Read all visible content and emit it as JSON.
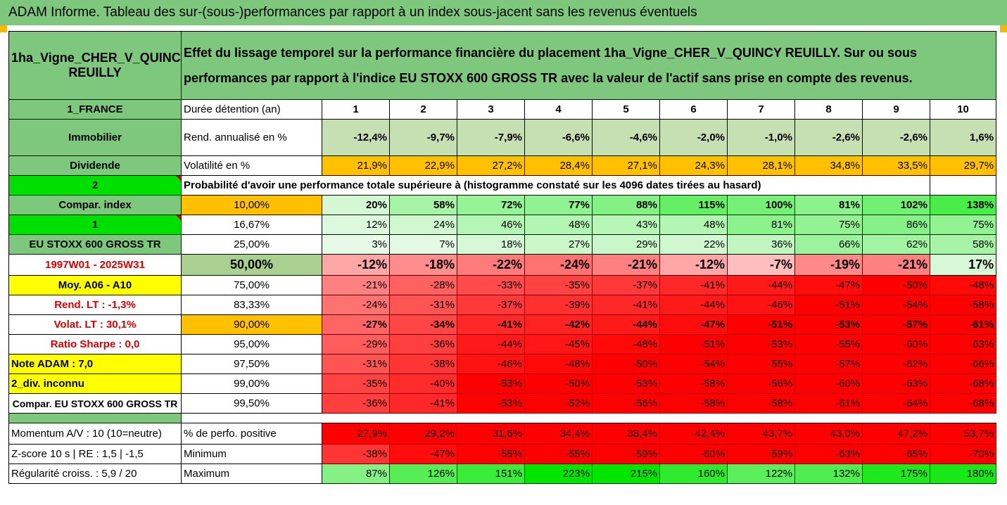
{
  "title": "ADAM Informe. Tableau des sur-(sous-)performances par rapport à un index sous-jacent sans les revenus éventuels",
  "asset_name": "1ha_Vigne_CHER_V_QUINCY REUILLY",
  "description": "Effet du lissage temporel sur la performance financière du placement 1ha_Vigne_CHER_V_QUINCY REUILLY. Sur ou sous performances par rapport à l'indice EU STOXX 600 GROSS TR avec la valeur de l'actif sans prise en compte des revenus.",
  "left_labels": {
    "country": "1_FRANCE",
    "category": "Immobilier",
    "dividende": "Dividende",
    "num2": "2",
    "compar_index": "Compar. index",
    "num1": "1",
    "index_name": "EU STOXX 600 GROSS TR",
    "period": "1997W01 - 2025W31",
    "moy": "Moy. A06 - A10",
    "rend_lt": "Rend. LT :   -1,3%",
    "volat_lt": "Volat. LT :   30,1%",
    "ratio_sharpe": "Ratio Sharpe :    0,0",
    "note_adam": "Note ADAM : 7,0",
    "div": "2_div. inconnu",
    "compar_full": "Compar. EU STOXX 600 GROSS TR",
    "momentum": "Momentum A/V : 10 (10=neutre)",
    "zscore": "Z-score 10 s  |  RE : 1,5  | -1,5",
    "regularite": "Régularité croiss. : 5,9 / 20"
  },
  "header": {
    "duration_label": "Durée détention (an)",
    "years": [
      "1",
      "2",
      "3",
      "4",
      "5",
      "6",
      "7",
      "8",
      "9",
      "10"
    ]
  },
  "rend": {
    "label": "Rend. annualisé en %",
    "values": [
      "-12,4%",
      "-9,7%",
      "-7,9%",
      "-6,6%",
      "-4,6%",
      "-2,0%",
      "-1,0%",
      "-2,6%",
      "-2,6%",
      "1,6%"
    ]
  },
  "volat": {
    "label": "Volatilité en %",
    "values": [
      "21,9%",
      "22,9%",
      "27,2%",
      "28,4%",
      "27,1%",
      "24,3%",
      "28,1%",
      "34,8%",
      "33,5%",
      "29,7%"
    ]
  },
  "prob_text": "Probabilité d'avoir une performance totale supérieure à (histogramme constaté sur les 4096 dates tirées au hasard)",
  "quantiles": [
    {
      "q": "10,00%",
      "values": [
        "20%",
        "58%",
        "72%",
        "77%",
        "88%",
        "115%",
        "100%",
        "81%",
        "102%",
        "138%"
      ]
    },
    {
      "q": "16,67%",
      "values": [
        "12%",
        "24%",
        "46%",
        "48%",
        "43%",
        "48%",
        "81%",
        "75%",
        "86%",
        "75%"
      ]
    },
    {
      "q": "25,00%",
      "values": [
        "3%",
        "7%",
        "18%",
        "27%",
        "29%",
        "22%",
        "36%",
        "66%",
        "62%",
        "58%"
      ]
    },
    {
      "q": "50,00%",
      "values": [
        "-12%",
        "-18%",
        "-22%",
        "-24%",
        "-21%",
        "-12%",
        "-7%",
        "-19%",
        "-21%",
        "17%"
      ]
    },
    {
      "q": "75,00%",
      "values": [
        "-21%",
        "-28%",
        "-33%",
        "-35%",
        "-37%",
        "-41%",
        "-44%",
        "-47%",
        "-50%",
        "-48%"
      ]
    },
    {
      "q": "83,33%",
      "values": [
        "-24%",
        "-31%",
        "-37%",
        "-39%",
        "-41%",
        "-44%",
        "-46%",
        "-51%",
        "-54%",
        "-58%"
      ]
    },
    {
      "q": "90,00%",
      "values": [
        "-27%",
        "-34%",
        "-41%",
        "-42%",
        "-44%",
        "-47%",
        "-51%",
        "-53%",
        "-57%",
        "-61%"
      ]
    },
    {
      "q": "95,00%",
      "values": [
        "-29%",
        "-36%",
        "-44%",
        "-45%",
        "-48%",
        "-51%",
        "-53%",
        "-55%",
        "-60%",
        "-63%"
      ]
    },
    {
      "q": "97,50%",
      "values": [
        "-31%",
        "-38%",
        "-46%",
        "-48%",
        "-50%",
        "-54%",
        "-55%",
        "-57%",
        "-62%",
        "-66%"
      ]
    },
    {
      "q": "99,00%",
      "values": [
        "-35%",
        "-40%",
        "-53%",
        "-50%",
        "-53%",
        "-58%",
        "-56%",
        "-60%",
        "-63%",
        "-68%"
      ]
    },
    {
      "q": "99,50%",
      "values": [
        "-36%",
        "-41%",
        "-53%",
        "-52%",
        "-56%",
        "-58%",
        "-58%",
        "-61%",
        "-64%",
        "-68%"
      ]
    }
  ],
  "positive": {
    "label": "% de perfo. positive",
    "values": [
      "27,9%",
      "29,2%",
      "31,6%",
      "34,4%",
      "38,4%",
      "42,4%",
      "43,7%",
      "43,0%",
      "47,2%",
      "53,7%"
    ]
  },
  "minimum": {
    "label": "Minimum",
    "values": [
      "-38%",
      "-47%",
      "-55%",
      "-55%",
      "-59%",
      "-60%",
      "-59%",
      "-63%",
      "-65%",
      "-70%"
    ]
  },
  "maximum": {
    "label": "Maximum",
    "values": [
      "87%",
      "126%",
      "151%",
      "223%",
      "215%",
      "160%",
      "122%",
      "132%",
      "175%",
      "180%"
    ]
  },
  "colors": {
    "header_green": "#7dc87d",
    "bright_green": "#00e000",
    "yellow": "#ffff00",
    "orange": "#ffc000",
    "red": "#ff0000"
  }
}
